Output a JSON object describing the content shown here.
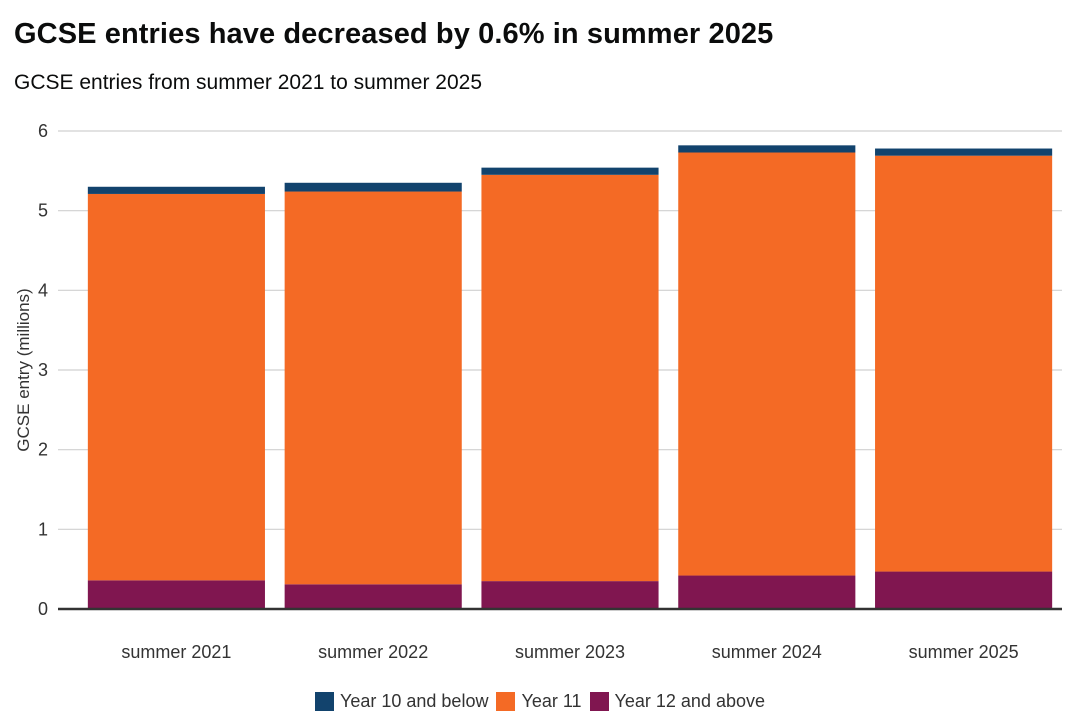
{
  "title": "GCSE entries have decreased by 0.6% in summer 2025",
  "subtitle": "GCSE entries from summer 2021 to summer 2025",
  "chart_data": {
    "type": "bar",
    "stacked": true,
    "categories": [
      "summer 2021",
      "summer 2022",
      "summer 2023",
      "summer 2024",
      "summer 2025"
    ],
    "series": [
      {
        "name": "Year 12 and above",
        "color": "#801650",
        "values": [
          0.36,
          0.31,
          0.35,
          0.42,
          0.47
        ]
      },
      {
        "name": "Year 11",
        "color": "#f46a25",
        "values": [
          4.85,
          4.93,
          5.1,
          5.31,
          5.22
        ]
      },
      {
        "name": "Year 10 and below",
        "color": "#12436d",
        "values": [
          0.09,
          0.11,
          0.09,
          0.09,
          0.09
        ]
      }
    ],
    "ylabel": "GCSE entry (millions)",
    "xlabel": "",
    "ylim": [
      0,
      6
    ],
    "yticks": [
      0,
      1,
      2,
      3,
      4,
      5,
      6
    ],
    "grid": true,
    "legend": [
      "Year 10 and below",
      "Year 11",
      "Year 12 and above"
    ],
    "legend_position": "bottom"
  }
}
